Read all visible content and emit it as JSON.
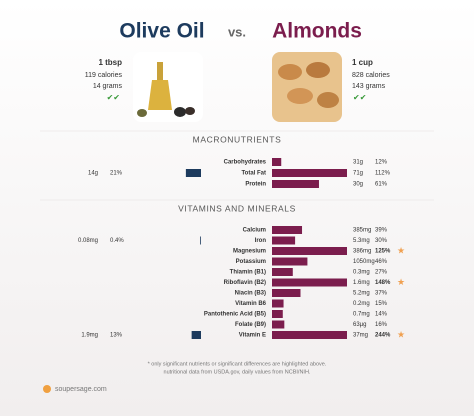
{
  "header": {
    "left_title": "Olive Oil",
    "vs": "vs.",
    "right_title": "Almonds"
  },
  "left_food": {
    "serving": "1 tbsp",
    "calories": "119 calories",
    "weight": "14 grams"
  },
  "right_food": {
    "serving": "1 cup",
    "calories": "828 calories",
    "weight": "143 grams"
  },
  "sections": [
    {
      "title": "MACRONUTRIENTS",
      "rows": [
        {
          "name": "Carbohydrates",
          "right_amount": "31g",
          "right_pct": 12,
          "right_pct_label": "12%"
        },
        {
          "name": "Total Fat",
          "left_amount": "14g",
          "left_pct": 21,
          "left_pct_label": "21%",
          "right_amount": "71g",
          "right_pct": 112,
          "right_pct_label": "112%"
        },
        {
          "name": "Protein",
          "right_amount": "30g",
          "right_pct": 61,
          "right_pct_label": "61%"
        }
      ]
    },
    {
      "title": "VITAMINS AND MINERALS",
      "rows": [
        {
          "name": "Calcium",
          "right_amount": "385mg",
          "right_pct": 39,
          "right_pct_label": "39%"
        },
        {
          "name": "Iron",
          "left_amount": "0.08mg",
          "left_pct": 0.4,
          "left_pct_label": "0.4%",
          "right_amount": "5.3mg",
          "right_pct": 30,
          "right_pct_label": "30%"
        },
        {
          "name": "Magnesium",
          "right_amount": "386mg",
          "right_pct": 125,
          "right_pct_label": "125%",
          "star": true
        },
        {
          "name": "Potassium",
          "right_amount": "1050mg",
          "right_pct": 46,
          "right_pct_label": "46%"
        },
        {
          "name": "Thiamin (B1)",
          "right_amount": "0.3mg",
          "right_pct": 27,
          "right_pct_label": "27%"
        },
        {
          "name": "Riboflavin (B2)",
          "right_amount": "1.6mg",
          "right_pct": 148,
          "right_pct_label": "148%",
          "star": true
        },
        {
          "name": "Niacin (B3)",
          "right_amount": "5.2mg",
          "right_pct": 37,
          "right_pct_label": "37%"
        },
        {
          "name": "Vitamin B6",
          "right_amount": "0.2mg",
          "right_pct": 15,
          "right_pct_label": "15%"
        },
        {
          "name": "Pantothenic Acid (B5)",
          "right_amount": "0.7mg",
          "right_pct": 14,
          "right_pct_label": "14%"
        },
        {
          "name": "Folate (B9)",
          "right_amount": "63µg",
          "right_pct": 16,
          "right_pct_label": "16%"
        },
        {
          "name": "Vitamin E",
          "left_amount": "1.9mg",
          "left_pct": 13,
          "left_pct_label": "13%",
          "right_amount": "37mg",
          "right_pct": 244,
          "right_pct_label": "244%",
          "star": true
        }
      ]
    }
  ],
  "footer": {
    "note1": "* only significant nutrients or significant differences are highlighted above.",
    "note2": "nutritional data from USDA.gov, daily values from NCBI/NIH.",
    "site": "soupersage.com"
  }
}
